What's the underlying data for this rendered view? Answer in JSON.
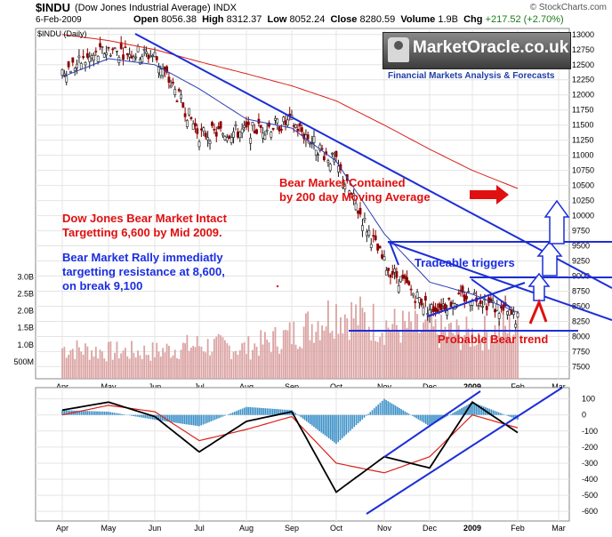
{
  "header": {
    "symbol": "$INDU",
    "name": "(Dow Jones Industrial Average)",
    "exchange": "INDX",
    "credit": "© StockCharts.com",
    "date": "6-Feb-2009",
    "open_label": "Open",
    "open": "8056.38",
    "high_label": "High",
    "high": "8312.37",
    "low_label": "Low",
    "low": "8052.24",
    "close_label": "Close",
    "close": "8280.59",
    "volume_label": "Volume",
    "volume": "1.9B",
    "chg_label": "Chg",
    "chg": "+217.52 (+2.70%)"
  },
  "price_panel_tag": "$INDU (Daily)",
  "logo": {
    "text": "MarketOracle.co.uk",
    "subtitle": "Financial Markets Analysis & Forecasts"
  },
  "annotations": {
    "bear_contained_1": "Bear Market Contained",
    "bear_contained_2": "by 200 day Moving Average",
    "bear_intact_1": "Dow Jones Bear Market Intact",
    "bear_intact_2": "Targetting 6,600 by Mid 2009.",
    "rally_1": "Bear Market Rally immediatly",
    "rally_2": "targetting resistance at  8,600,",
    "rally_3": "on break  9,100",
    "tradeable": "Tradeable triggers",
    "probable": "Probable Bear trend"
  },
  "colors": {
    "price_up": "#1a1a1a",
    "price_down": "#8b0000",
    "ma_short": "#2e3fb5",
    "ma_long": "#d9221a",
    "trendline": "#1c2ed6",
    "volume": "#dba3a3",
    "histogram": "#3a8fc7",
    "annotation_red": "#e01010",
    "annotation_blue": "#1a2ee0"
  },
  "chart_data": [
    {
      "type": "line",
      "panel": "price",
      "title": "$INDU (Daily)",
      "x_ticks": [
        "Apr",
        "May",
        "Jun",
        "Jul",
        "Aug",
        "Sep",
        "Oct",
        "Nov",
        "Dec",
        "2009",
        "Feb",
        "Mar"
      ],
      "y_ticks": [
        7500,
        7750,
        8000,
        8250,
        8500,
        8750,
        9000,
        9250,
        9500,
        9750,
        10000,
        10250,
        10500,
        10750,
        11000,
        11250,
        11500,
        11750,
        12000,
        12250,
        12500,
        12750,
        13000
      ],
      "ylim": [
        7300,
        13100
      ],
      "series": [
        {
          "x": [
            "Apr",
            "May",
            "Jun",
            "Jul",
            "Aug",
            "Sep",
            "Oct",
            "Nov",
            "Dec",
            "2009",
            "Feb"
          ],
          "values": [
            12400,
            12750,
            12650,
            11350,
            11400,
            11550,
            10850,
            9200,
            8450,
            8700,
            8280
          ]
        },
        {
          "x": [
            "Apr",
            "May",
            "Jun",
            "Jul",
            "Aug",
            "Sep",
            "Oct",
            "Nov",
            "Dec",
            "2009",
            "Feb"
          ],
          "values": [
            12300,
            12600,
            12500,
            12100,
            11600,
            11450,
            10900,
            9700,
            8900,
            8700,
            8400
          ]
        },
        {
          "x": [
            "Apr",
            "May",
            "Jun",
            "Jul",
            "Aug",
            "Sep",
            "Oct",
            "Nov",
            "Dec",
            "2009",
            "Feb"
          ],
          "values": [
            13000,
            12900,
            12750,
            12550,
            12350,
            12150,
            11900,
            11500,
            11100,
            10750,
            10450
          ]
        }
      ]
    },
    {
      "type": "bar",
      "panel": "volume",
      "y_ticks": [
        "500M",
        "1.0B",
        "1.5B",
        "2.0B",
        "2.5B",
        "3.0B"
      ],
      "ylim": [
        0,
        3.3
      ],
      "categories": [
        "Apr",
        "May",
        "Jun",
        "Jul",
        "Aug",
        "Sep",
        "Oct",
        "Nov",
        "Dec",
        "2009",
        "Feb"
      ],
      "values": [
        0.9,
        0.8,
        0.8,
        1.0,
        0.9,
        1.3,
        2.0,
        1.6,
        1.4,
        1.3,
        1.5
      ]
    },
    {
      "type": "line",
      "panel": "macd",
      "x_ticks": [
        "Apr",
        "May",
        "Jun",
        "Jul",
        "Aug",
        "Sep",
        "Oct",
        "Nov",
        "Dec",
        "2009",
        "Feb",
        "Mar"
      ],
      "y_ticks": [
        100,
        0,
        -100,
        -200,
        -300,
        -400,
        -500,
        -600
      ],
      "ylim": [
        -660,
        170
      ],
      "series": [
        {
          "x": [
            "Apr",
            "May",
            "Jun",
            "Jul",
            "Aug",
            "Sep",
            "Oct",
            "Nov",
            "Dec",
            "2009",
            "Feb"
          ],
          "values": [
            30,
            80,
            -10,
            -230,
            -40,
            20,
            -480,
            -260,
            -330,
            80,
            -110
          ]
        },
        {
          "x": [
            "Apr",
            "May",
            "Jun",
            "Jul",
            "Aug",
            "Sep",
            "Oct",
            "Nov",
            "Dec",
            "2009",
            "Feb"
          ],
          "values": [
            0,
            60,
            20,
            -160,
            -90,
            -10,
            -300,
            -360,
            -260,
            0,
            -80
          ]
        }
      ]
    }
  ]
}
